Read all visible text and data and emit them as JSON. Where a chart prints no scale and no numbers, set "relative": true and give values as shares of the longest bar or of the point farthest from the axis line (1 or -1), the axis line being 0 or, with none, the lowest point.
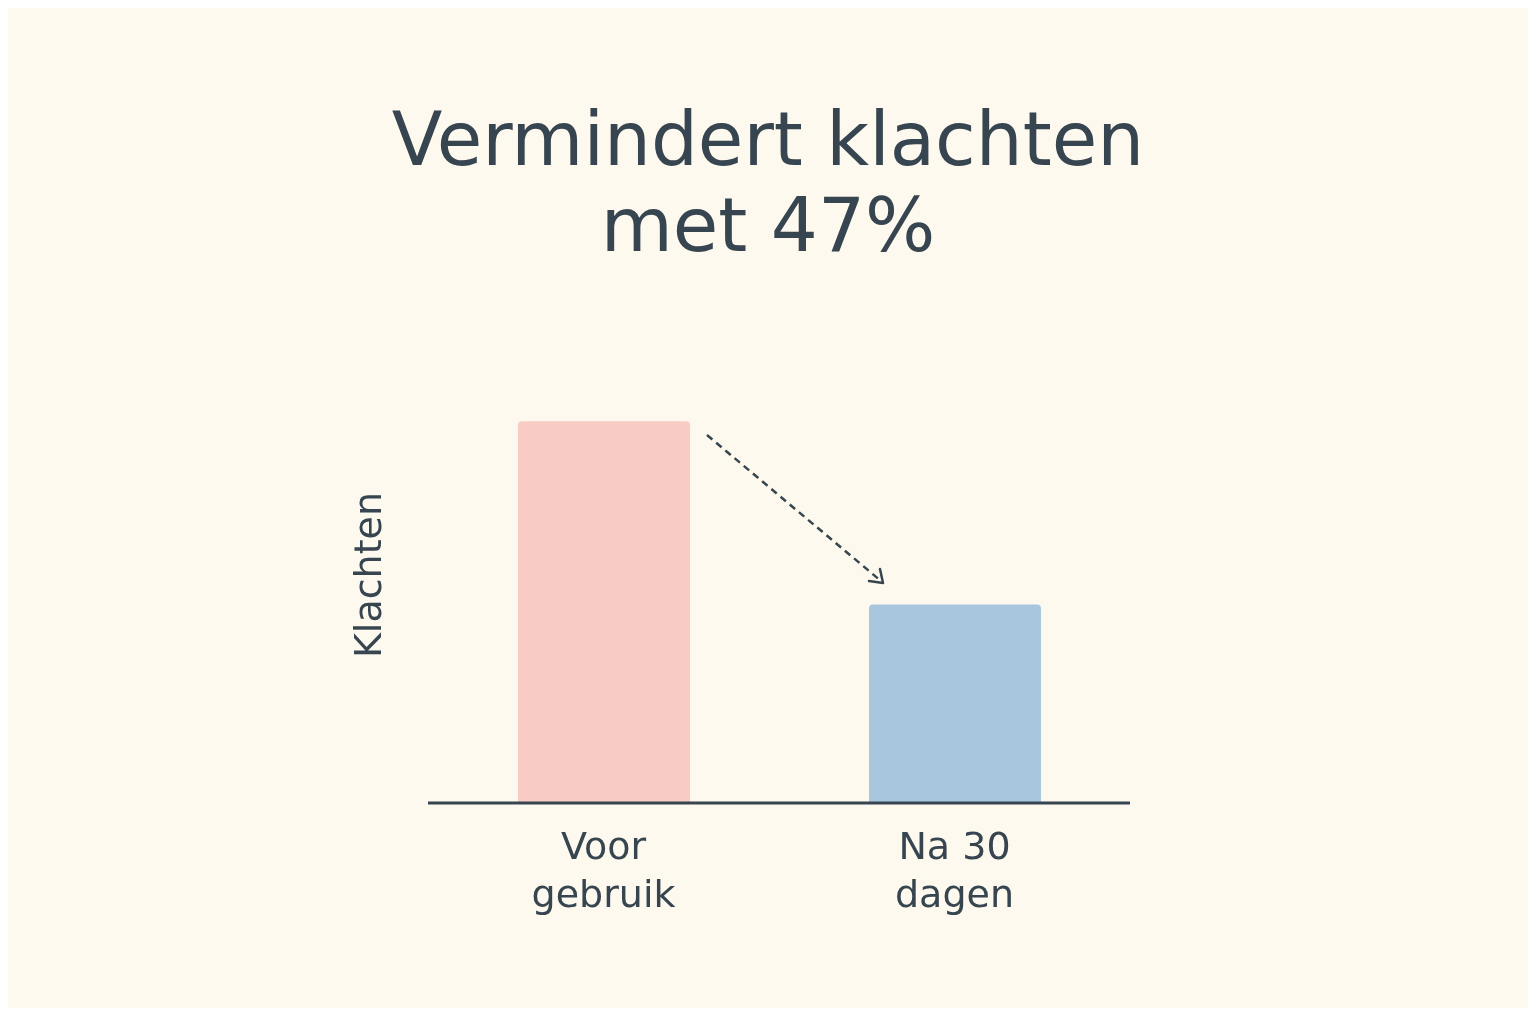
{
  "chart_data": {
    "type": "bar",
    "title": "Vermindert klachten met 47%",
    "ylabel": "Klachten",
    "relative": true,
    "categories": [
      "Voor gebruik",
      "Na 30 dagen"
    ],
    "values": [
      1,
      0.52
    ],
    "colors": [
      "#f8cbc4",
      "#a8c6de"
    ],
    "grid": false,
    "legend": false
  }
}
